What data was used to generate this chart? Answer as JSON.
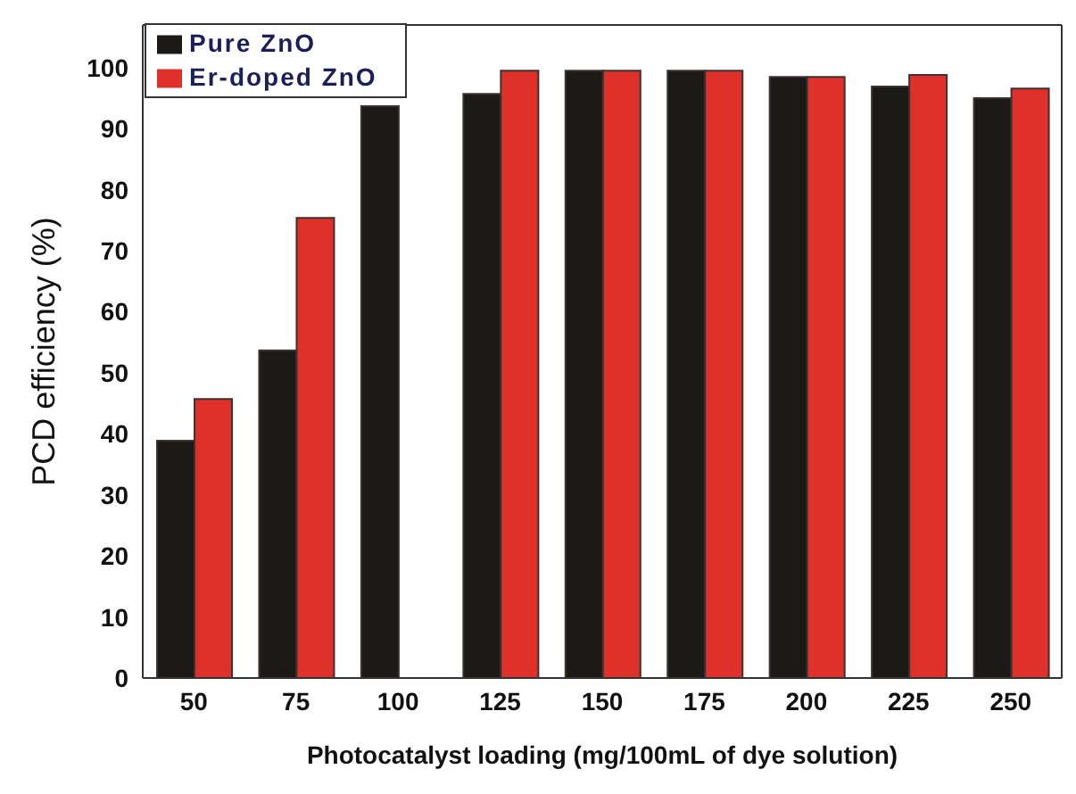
{
  "chart_data": {
    "type": "bar",
    "xlabel": "Photocatalyst loading (mg/100mL of dye solution)",
    "ylabel": "PCD efficiency (%)",
    "categories": [
      "50",
      "75",
      "100",
      "125",
      "150",
      "175",
      "200",
      "225",
      "250"
    ],
    "series": [
      {
        "name": "Pure ZnO",
        "color": "#1c1a17",
        "values": [
          38.9,
          53.7,
          93.7,
          95.7,
          99.5,
          99.5,
          98.5,
          96.9,
          95.0
        ]
      },
      {
        "name": "Er-doped ZnO",
        "color": "#e0302a",
        "values": [
          45.7,
          75.4,
          null,
          99.5,
          99.5,
          99.5,
          98.5,
          98.8,
          96.6
        ]
      }
    ],
    "ylim": [
      0,
      107
    ],
    "yticks": [
      0,
      10,
      20,
      30,
      40,
      50,
      60,
      70,
      80,
      90,
      100
    ],
    "grid": false,
    "legend": "top left"
  }
}
